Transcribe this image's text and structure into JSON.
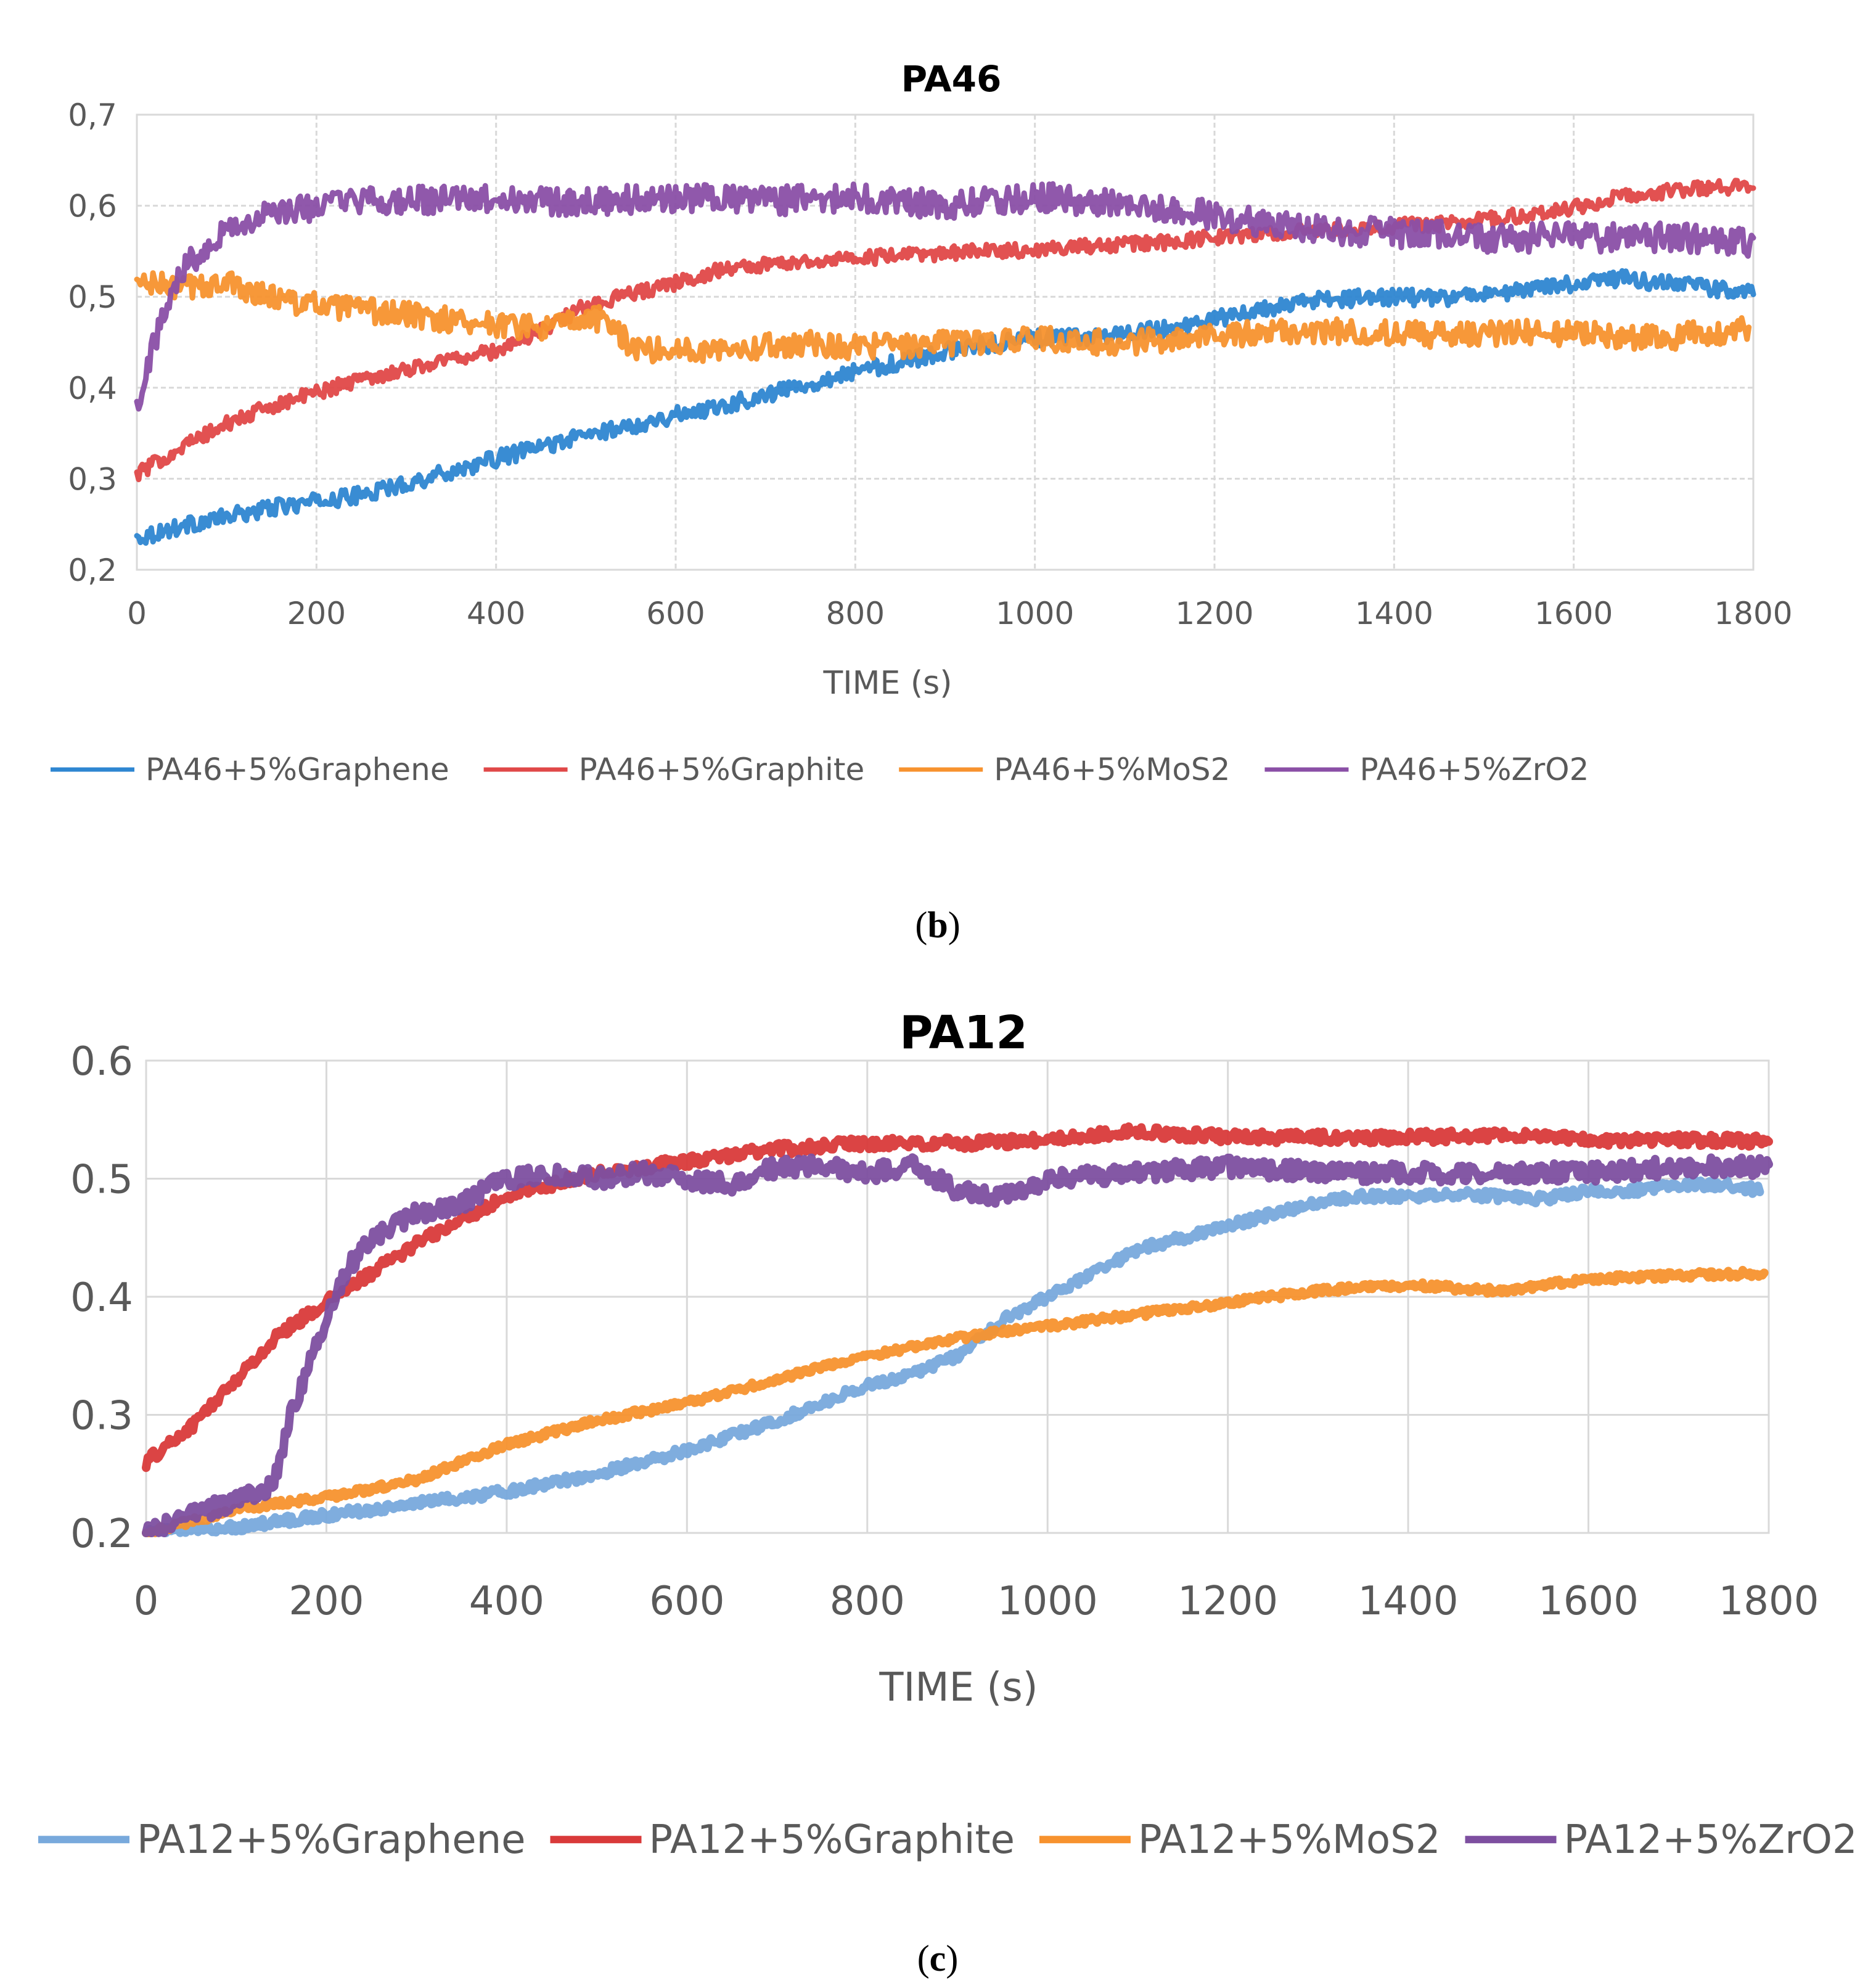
{
  "chart_data": [
    {
      "type": "line",
      "title": "PA46",
      "panel_label": "(b)",
      "xlabel": "TIME (s)",
      "ylabel": "",
      "xlim": [
        0,
        1800
      ],
      "ylim": [
        0.2,
        0.7
      ],
      "xticks": [
        0,
        200,
        400,
        600,
        800,
        1000,
        1200,
        1400,
        1600,
        1800
      ],
      "yticks": [
        0.2,
        0.3,
        0.4,
        0.5,
        0.6,
        0.7
      ],
      "ytick_labels": [
        "0,2",
        "0,3",
        "0,4",
        "0,5",
        "0,6",
        "0,7"
      ],
      "xtick_labels": [
        "0",
        "200",
        "400",
        "600",
        "800",
        "1000",
        "1200",
        "1400",
        "1600",
        "1800"
      ],
      "grid": true,
      "legend": "bottom",
      "series": [
        {
          "name": "PA46+5%Graphene",
          "color": "#2e86d1",
          "noise": 0.009,
          "x": [
            0,
            50,
            100,
            150,
            200,
            250,
            300,
            350,
            400,
            450,
            500,
            550,
            600,
            650,
            700,
            750,
            800,
            850,
            900,
            950,
            1000,
            1050,
            1100,
            1150,
            1200,
            1250,
            1300,
            1350,
            1400,
            1450,
            1500,
            1550,
            1600,
            1650,
            1700,
            1750,
            1800
          ],
          "y": [
            0.235,
            0.248,
            0.258,
            0.268,
            0.275,
            0.282,
            0.295,
            0.308,
            0.322,
            0.335,
            0.348,
            0.358,
            0.37,
            0.38,
            0.392,
            0.405,
            0.418,
            0.428,
            0.44,
            0.448,
            0.455,
            0.455,
            0.46,
            0.465,
            0.475,
            0.485,
            0.495,
            0.498,
            0.5,
            0.498,
            0.502,
            0.508,
            0.515,
            0.52,
            0.515,
            0.51,
            0.505
          ]
        },
        {
          "name": "PA46+5%Graphite",
          "color": "#e04848",
          "noise": 0.008,
          "x": [
            0,
            50,
            100,
            150,
            200,
            250,
            300,
            350,
            400,
            450,
            500,
            550,
            600,
            650,
            700,
            750,
            800,
            850,
            900,
            950,
            1000,
            1050,
            1100,
            1150,
            1200,
            1250,
            1300,
            1350,
            1400,
            1450,
            1500,
            1550,
            1600,
            1650,
            1700,
            1750,
            1800
          ],
          "y": [
            0.305,
            0.335,
            0.36,
            0.38,
            0.395,
            0.41,
            0.42,
            0.432,
            0.44,
            0.463,
            0.49,
            0.503,
            0.515,
            0.53,
            0.535,
            0.54,
            0.542,
            0.545,
            0.548,
            0.55,
            0.552,
            0.555,
            0.558,
            0.56,
            0.565,
            0.568,
            0.572,
            0.575,
            0.578,
            0.58,
            0.585,
            0.59,
            0.598,
            0.61,
            0.615,
            0.62,
            0.62
          ]
        },
        {
          "name": "PA46+5%MoS2",
          "color": "#f7922e",
          "noise": 0.014,
          "x": [
            0,
            50,
            100,
            150,
            200,
            250,
            300,
            350,
            400,
            450,
            500,
            525,
            550,
            600,
            650,
            700,
            750,
            800,
            850,
            900,
            950,
            1000,
            1050,
            1100,
            1150,
            1200,
            1250,
            1300,
            1350,
            1400,
            1450,
            1500,
            1550,
            1600,
            1650,
            1700,
            1750,
            1795
          ],
          "y": [
            0.515,
            0.51,
            0.515,
            0.5,
            0.49,
            0.485,
            0.48,
            0.475,
            0.47,
            0.465,
            0.475,
            0.475,
            0.445,
            0.44,
            0.445,
            0.445,
            0.45,
            0.445,
            0.445,
            0.45,
            0.45,
            0.455,
            0.45,
            0.45,
            0.452,
            0.458,
            0.46,
            0.462,
            0.462,
            0.46,
            0.458,
            0.46,
            0.46,
            0.46,
            0.455,
            0.455,
            0.46,
            0.465
          ]
        },
        {
          "name": "PA46+5%ZrO2",
          "color": "#8a4fa6",
          "noise": 0.016,
          "x": [
            0,
            10,
            20,
            30,
            50,
            80,
            100,
            150,
            200,
            250,
            300,
            400,
            500,
            600,
            700,
            800,
            900,
            1000,
            1100,
            1200,
            1300,
            1400,
            1500,
            1600,
            1700,
            1800
          ],
          "y": [
            0.38,
            0.42,
            0.45,
            0.48,
            0.53,
            0.56,
            0.575,
            0.59,
            0.6,
            0.605,
            0.605,
            0.607,
            0.605,
            0.608,
            0.605,
            0.61,
            0.6,
            0.61,
            0.6,
            0.59,
            0.575,
            0.57,
            0.565,
            0.565,
            0.565,
            0.56
          ]
        }
      ]
    },
    {
      "type": "line",
      "title": "PA12",
      "panel_label": "(c)",
      "xlabel": "TIME (s)",
      "ylabel": "",
      "xlim": [
        0,
        1800
      ],
      "ylim": [
        0.2,
        0.6
      ],
      "xticks": [
        0,
        200,
        400,
        600,
        800,
        1000,
        1200,
        1400,
        1600,
        1800
      ],
      "yticks": [
        0.2,
        0.3,
        0.4,
        0.5,
        0.6
      ],
      "ytick_labels": [
        "0.2",
        "0.3",
        "0.4",
        "0.5",
        "0.6"
      ],
      "xtick_labels": [
        "0",
        "200",
        "400",
        "600",
        "800",
        "1000",
        "1200",
        "1400",
        "1600",
        "1800"
      ],
      "grid": true,
      "legend": "bottom",
      "series": [
        {
          "name": "PA12+5%Graphene",
          "color": "#78a9dc",
          "noise": 0.004,
          "x": [
            0,
            100,
            200,
            300,
            400,
            500,
            600,
            700,
            800,
            850,
            900,
            950,
            1000,
            1050,
            1100,
            1150,
            1200,
            1250,
            1300,
            1350,
            1400,
            1450,
            1500,
            1550,
            1600,
            1650,
            1700,
            1750,
            1790
          ],
          "y": [
            0.2,
            0.205,
            0.215,
            0.225,
            0.235,
            0.25,
            0.27,
            0.295,
            0.325,
            0.335,
            0.35,
            0.38,
            0.4,
            0.42,
            0.44,
            0.45,
            0.46,
            0.47,
            0.48,
            0.485,
            0.485,
            0.487,
            0.485,
            0.483,
            0.49,
            0.49,
            0.495,
            0.495,
            0.49
          ]
        },
        {
          "name": "PA12+5%Graphite",
          "color": "#d93a3a",
          "noise": 0.005,
          "x": [
            0,
            50,
            100,
            150,
            200,
            250,
            300,
            350,
            400,
            450,
            500,
            600,
            700,
            800,
            900,
            1000,
            1100,
            1200,
            1300,
            1400,
            1500,
            1600,
            1700,
            1800
          ],
          "y": [
            0.26,
            0.29,
            0.33,
            0.37,
            0.395,
            0.42,
            0.445,
            0.465,
            0.485,
            0.495,
            0.505,
            0.515,
            0.525,
            0.53,
            0.53,
            0.533,
            0.54,
            0.535,
            0.535,
            0.535,
            0.537,
            0.533,
            0.533,
            0.532
          ]
        },
        {
          "name": "PA12+5%MoS2",
          "color": "#f7922e",
          "noise": 0.003,
          "x": [
            0,
            100,
            200,
            300,
            400,
            500,
            600,
            700,
            800,
            900,
            1000,
            1100,
            1200,
            1300,
            1400,
            1500,
            1600,
            1700,
            1795
          ],
          "y": [
            0.2,
            0.22,
            0.23,
            0.245,
            0.275,
            0.295,
            0.31,
            0.33,
            0.35,
            0.365,
            0.375,
            0.385,
            0.395,
            0.405,
            0.41,
            0.405,
            0.415,
            0.418,
            0.42
          ]
        },
        {
          "name": "PA12+5%ZrO2",
          "color": "#7d4fa0",
          "noise": 0.008,
          "x": [
            0,
            50,
            100,
            130,
            145,
            160,
            180,
            200,
            220,
            250,
            300,
            350,
            400,
            450,
            500,
            550,
            600,
            650,
            700,
            750,
            800,
            850,
            900,
            950,
            1000,
            1100,
            1200,
            1300,
            1400,
            1500,
            1600,
            1700,
            1800
          ],
          "y": [
            0.2,
            0.215,
            0.228,
            0.235,
            0.25,
            0.3,
            0.34,
            0.38,
            0.42,
            0.45,
            0.47,
            0.48,
            0.5,
            0.505,
            0.5,
            0.505,
            0.5,
            0.495,
            0.51,
            0.51,
            0.505,
            0.51,
            0.49,
            0.485,
            0.5,
            0.505,
            0.51,
            0.505,
            0.505,
            0.505,
            0.505,
            0.51,
            0.51
          ]
        }
      ]
    }
  ]
}
